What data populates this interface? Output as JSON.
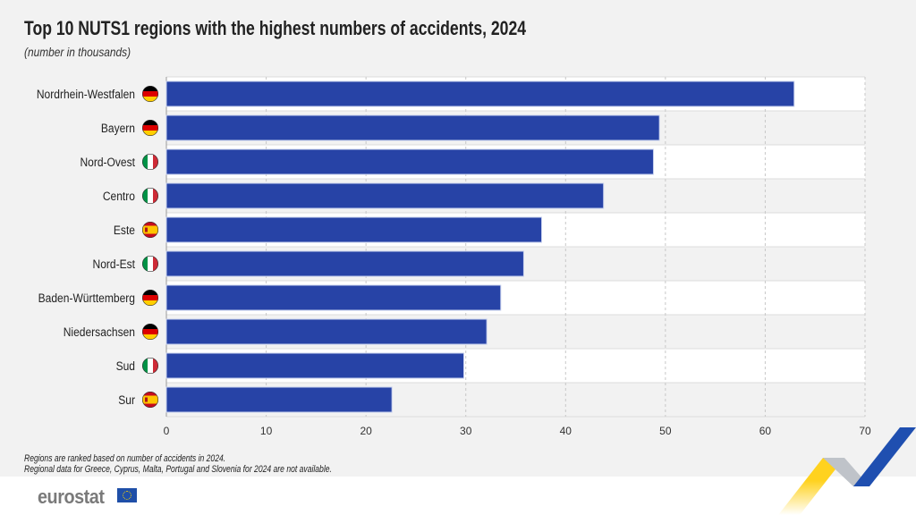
{
  "chart_data": {
    "type": "bar",
    "orientation": "horizontal",
    "title": "Top 10 NUTS1 regions with the highest numbers of accidents, 2024",
    "subtitle": "(number in thousands)",
    "categories": [
      "Nordrhein-Westfalen",
      "Bayern",
      "Nord-Ovest",
      "Centro",
      "Este",
      "Nord-Est",
      "Baden-Württemberg",
      "Niedersachsen",
      "Sud",
      "Sur"
    ],
    "countries": [
      "DE",
      "DE",
      "IT",
      "IT",
      "ES",
      "IT",
      "DE",
      "DE",
      "IT",
      "ES"
    ],
    "values": [
      62.9,
      49.4,
      48.8,
      43.8,
      37.6,
      35.8,
      33.5,
      32.1,
      29.8,
      22.6
    ],
    "xlim": [
      0,
      70
    ],
    "xticks": [
      0,
      10,
      20,
      30,
      40,
      50,
      60,
      70
    ],
    "grid": true,
    "bar_color": "#2743a6"
  },
  "notes": [
    "Regions are ranked based on number of accidents in 2024.",
    "Regional data for Greece, Cyprus, Malta, Portugal and Slovenia for 2024 are not available."
  ],
  "logo": "eurostat"
}
